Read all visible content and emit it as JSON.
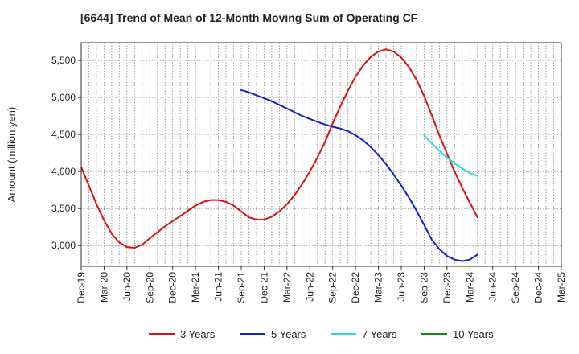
{
  "chart_data": {
    "type": "line",
    "title": "[6644]  Trend of Mean of 12-Month Moving Sum of Operating CF",
    "xlabel": "",
    "ylabel": "Amount (million yen)",
    "ylim": [
      2720,
      5740
    ],
    "yticks": [
      3000,
      3500,
      4000,
      4500,
      5000,
      5500
    ],
    "ytick_labels": [
      "3,000",
      "3,500",
      "4,000",
      "4,500",
      "5,000",
      "5,500"
    ],
    "xticks": [
      "Dec-19",
      "Mar-20",
      "Jun-20",
      "Sep-20",
      "Dec-20",
      "Mar-21",
      "Jun-21",
      "Sep-21",
      "Dec-21",
      "Mar-22",
      "Jun-22",
      "Sep-22",
      "Dec-22",
      "Mar-23",
      "Jun-23",
      "Sep-23",
      "Dec-23",
      "Mar-24",
      "Jun-24",
      "Sep-24",
      "Dec-24",
      "Mar-25"
    ],
    "grid": true,
    "legend_position": "bottom",
    "series": [
      {
        "name": "3 Years",
        "color": "#dd1111",
        "start_month": 0,
        "values": [
          4060,
          3810,
          3560,
          3340,
          3160,
          3040,
          2980,
          2970,
          3010,
          3100,
          3180,
          3260,
          3330,
          3400,
          3470,
          3540,
          3590,
          3615,
          3615,
          3590,
          3540,
          3460,
          3380,
          3350,
          3350,
          3390,
          3460,
          3560,
          3680,
          3830,
          4000,
          4190,
          4400,
          4650,
          4880,
          5090,
          5280,
          5430,
          5550,
          5620,
          5650,
          5620,
          5540,
          5410,
          5240,
          5020,
          4760,
          4490,
          4240,
          4000,
          3780,
          3580,
          3380
        ]
      },
      {
        "name": "5 Years",
        "color": "#1122cc",
        "start_month": 21,
        "values": [
          5100,
          5070,
          5030,
          4990,
          4950,
          4900,
          4850,
          4800,
          4750,
          4710,
          4670,
          4635,
          4605,
          4580,
          4545,
          4490,
          4420,
          4330,
          4220,
          4100,
          3960,
          3810,
          3650,
          3470,
          3280,
          3080,
          2950,
          2860,
          2810,
          2790,
          2810,
          2880
        ]
      },
      {
        "name": "7 Years",
        "color": "#22dddd",
        "start_month": 45,
        "values": [
          4490,
          4380,
          4280,
          4190,
          4110,
          4040,
          3980,
          3940
        ]
      },
      {
        "name": "10 Years",
        "color": "#118811",
        "start_month": 0,
        "values": []
      }
    ]
  }
}
